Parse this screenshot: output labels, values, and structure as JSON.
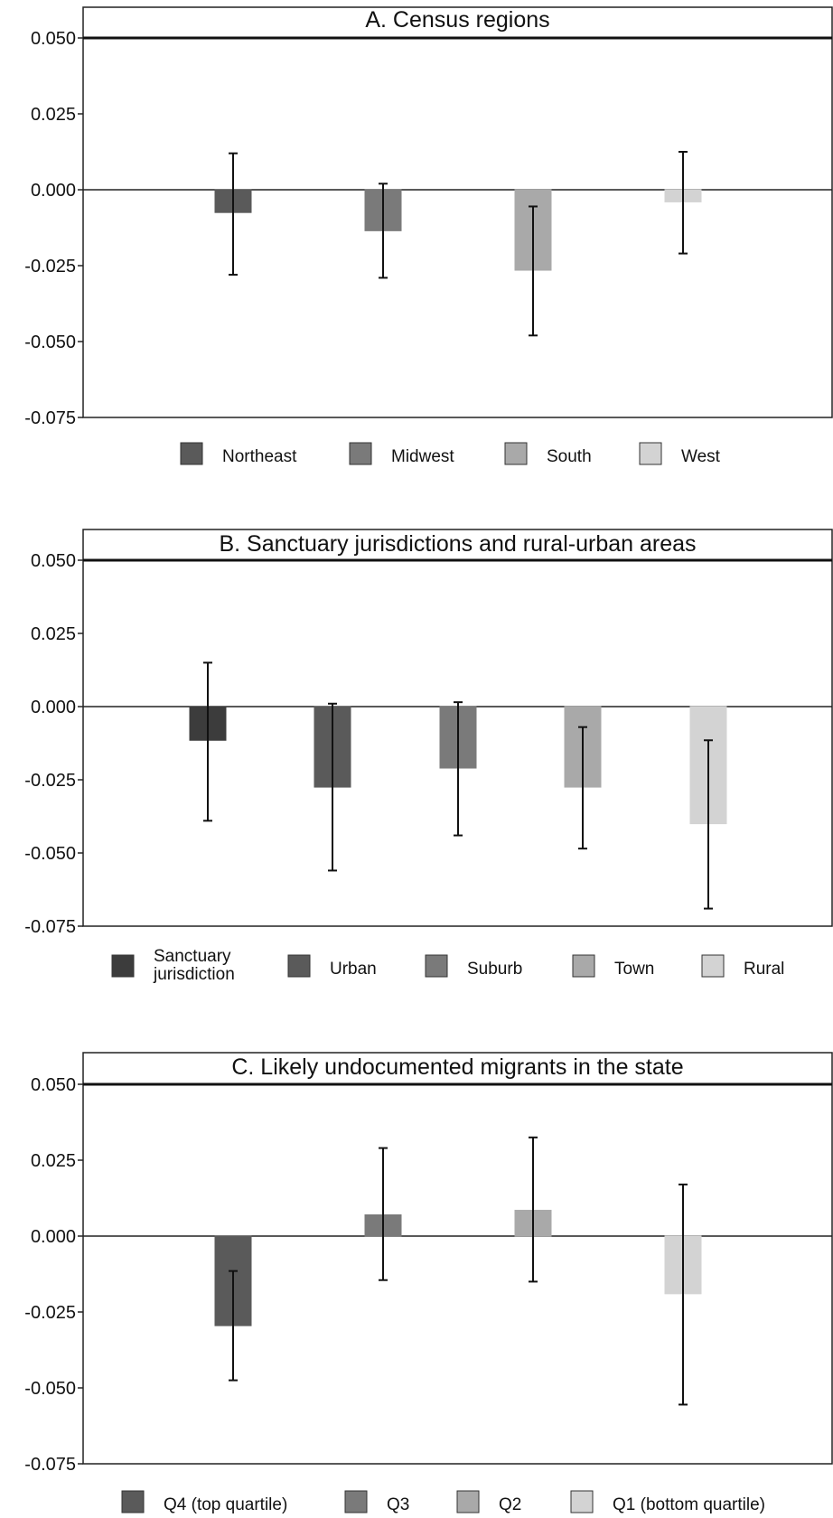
{
  "chart_data": [
    {
      "type": "bar",
      "title": "A. Census regions",
      "ylim": [
        -0.075,
        0.05
      ],
      "yticks": [
        0.05,
        0.025,
        0.0,
        -0.025,
        -0.05,
        -0.075
      ],
      "ytick_labels": [
        "0.050",
        "0.025",
        "0.000",
        "-0.025",
        "-0.050",
        "-0.075"
      ],
      "grid": false,
      "legend_position": "bottom",
      "series": [
        {
          "name": "Northeast",
          "value": -0.0075,
          "ci_low": -0.028,
          "ci_high": 0.012,
          "color": "#5a5a5a"
        },
        {
          "name": "Midwest",
          "value": -0.0135,
          "ci_low": -0.029,
          "ci_high": 0.002,
          "color": "#7a7a7a"
        },
        {
          "name": "South",
          "value": -0.0265,
          "ci_low": -0.048,
          "ci_high": -0.0055,
          "color": "#a9a9a9"
        },
        {
          "name": "West",
          "value": -0.004,
          "ci_low": -0.021,
          "ci_high": 0.0125,
          "color": "#d3d3d3"
        }
      ]
    },
    {
      "type": "bar",
      "title": "B. Sanctuary jurisdictions and rural-urban areas",
      "ylim": [
        -0.075,
        0.05
      ],
      "yticks": [
        0.05,
        0.025,
        0.0,
        -0.025,
        -0.05,
        -0.075
      ],
      "ytick_labels": [
        "0.050",
        "0.025",
        "0.000",
        "-0.025",
        "-0.050",
        "-0.075"
      ],
      "grid": false,
      "legend_position": "bottom",
      "series": [
        {
          "name": "Sanctuary jurisdiction",
          "value": -0.0115,
          "ci_low": -0.039,
          "ci_high": 0.015,
          "color": "#3c3c3c"
        },
        {
          "name": "Urban",
          "value": -0.0275,
          "ci_low": -0.056,
          "ci_high": 0.001,
          "color": "#5a5a5a"
        },
        {
          "name": "Suburb",
          "value": -0.021,
          "ci_low": -0.044,
          "ci_high": 0.0015,
          "color": "#7a7a7a"
        },
        {
          "name": "Town",
          "value": -0.0275,
          "ci_low": -0.0485,
          "ci_high": -0.007,
          "color": "#a9a9a9"
        },
        {
          "name": "Rural",
          "value": -0.04,
          "ci_low": -0.069,
          "ci_high": -0.0115,
          "color": "#d3d3d3"
        }
      ]
    },
    {
      "type": "bar",
      "title": "C. Likely undocumented migrants in the state",
      "ylim": [
        -0.075,
        0.05
      ],
      "yticks": [
        0.05,
        0.025,
        0.0,
        -0.025,
        -0.05,
        -0.075
      ],
      "ytick_labels": [
        "0.050",
        "0.025",
        "0.000",
        "-0.025",
        "-0.050",
        "-0.075"
      ],
      "grid": false,
      "legend_position": "bottom",
      "series": [
        {
          "name": "Q4 (top quartile)",
          "value": -0.0295,
          "ci_low": -0.0475,
          "ci_high": -0.0115,
          "color": "#5a5a5a"
        },
        {
          "name": "Q3",
          "value": 0.007,
          "ci_low": -0.0145,
          "ci_high": 0.029,
          "color": "#7a7a7a"
        },
        {
          "name": "Q2",
          "value": 0.0085,
          "ci_low": -0.015,
          "ci_high": 0.0325,
          "color": "#a9a9a9"
        },
        {
          "name": "Q1 (bottom quartile)",
          "value": -0.019,
          "ci_low": -0.0555,
          "ci_high": 0.017,
          "color": "#d3d3d3"
        }
      ]
    }
  ]
}
